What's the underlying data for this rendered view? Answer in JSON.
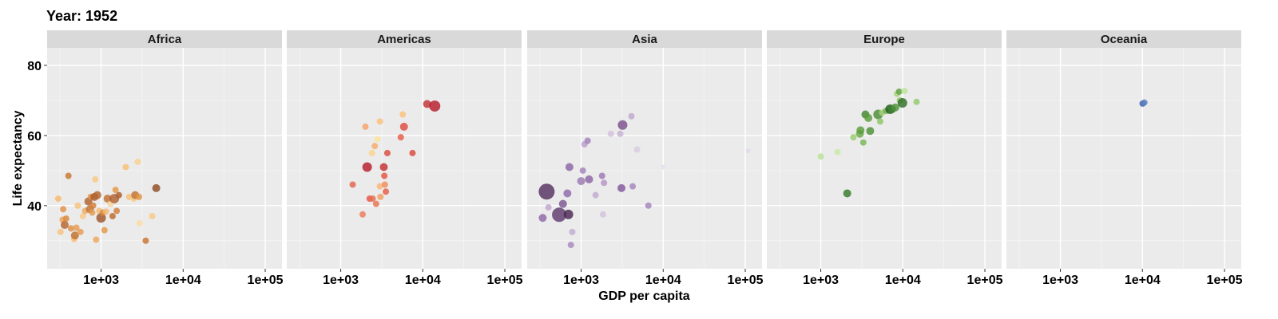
{
  "header": {
    "title": "Year: 1952"
  },
  "chart_data": {
    "type": "scatter",
    "title": "Year: 1952",
    "xlabel": "GDP per capita",
    "ylabel": "Life expectancy",
    "x_scale": "log10",
    "xlim": [
      220,
      160000
    ],
    "ylim": [
      22,
      85
    ],
    "xticks": [
      1000,
      10000,
      100000
    ],
    "xtick_labels": [
      "1e+03",
      "1e+04",
      "1e+05"
    ],
    "yticks": [
      40,
      60,
      80
    ],
    "ytick_labels": [
      "40",
      "60",
      "80"
    ],
    "grid": true,
    "size_encodes": "population",
    "panels": [
      {
        "name": "Africa",
        "points": [
          {
            "x": 300,
            "y": 42.0,
            "r": 4,
            "color": "#f8b86a"
          },
          {
            "x": 320,
            "y": 32.5,
            "r": 4,
            "color": "#f7c27e"
          },
          {
            "x": 340,
            "y": 36.0,
            "r": 4,
            "color": "#eaa057"
          },
          {
            "x": 345,
            "y": 39.0,
            "r": 4,
            "color": "#e09047"
          },
          {
            "x": 360,
            "y": 34.5,
            "r": 5,
            "color": "#b56530"
          },
          {
            "x": 375,
            "y": 36.3,
            "r": 4,
            "color": "#d8873d"
          },
          {
            "x": 400,
            "y": 48.5,
            "r": 4,
            "color": "#c8772f"
          },
          {
            "x": 430,
            "y": 33.5,
            "r": 4,
            "color": "#de8e45"
          },
          {
            "x": 470,
            "y": 30.5,
            "r": 4,
            "color": "#f5bd76"
          },
          {
            "x": 480,
            "y": 31.5,
            "r": 5,
            "color": "#c0702f"
          },
          {
            "x": 500,
            "y": 33.7,
            "r": 4,
            "color": "#e59a50"
          },
          {
            "x": 520,
            "y": 40.0,
            "r": 4,
            "color": "#f6c27a"
          },
          {
            "x": 560,
            "y": 32.5,
            "r": 4,
            "color": "#e69b4f"
          },
          {
            "x": 600,
            "y": 37.0,
            "r": 4,
            "color": "#f9c986"
          },
          {
            "x": 640,
            "y": 38.5,
            "r": 4,
            "color": "#ebaa60"
          },
          {
            "x": 700,
            "y": 41.2,
            "r": 5,
            "color": "#b0602c"
          },
          {
            "x": 730,
            "y": 39.0,
            "r": 5,
            "color": "#c4712f"
          },
          {
            "x": 750,
            "y": 42.5,
            "r": 4,
            "color": "#dd8c42"
          },
          {
            "x": 780,
            "y": 38.0,
            "r": 4,
            "color": "#e59b50"
          },
          {
            "x": 800,
            "y": 40.0,
            "r": 4,
            "color": "#cf7e36"
          },
          {
            "x": 830,
            "y": 42.5,
            "r": 5,
            "color": "#a85a2a"
          },
          {
            "x": 850,
            "y": 47.5,
            "r": 4,
            "color": "#f9c986"
          },
          {
            "x": 870,
            "y": 30.3,
            "r": 4,
            "color": "#eda65c"
          },
          {
            "x": 900,
            "y": 43.0,
            "r": 5,
            "color": "#b56530"
          },
          {
            "x": 950,
            "y": 38.5,
            "r": 4,
            "color": "#f4b973"
          },
          {
            "x": 1000,
            "y": 36.5,
            "r": 6,
            "color": "#9e5428"
          },
          {
            "x": 1050,
            "y": 38.0,
            "r": 4,
            "color": "#d98839"
          },
          {
            "x": 1100,
            "y": 33.0,
            "r": 4,
            "color": "#e49747"
          },
          {
            "x": 1150,
            "y": 38.3,
            "r": 4,
            "color": "#f4b973"
          },
          {
            "x": 1200,
            "y": 42.0,
            "r": 5,
            "color": "#c0702f"
          },
          {
            "x": 1300,
            "y": 40.5,
            "r": 4,
            "color": "#fad29a"
          },
          {
            "x": 1380,
            "y": 37.0,
            "r": 4,
            "color": "#ba6a2e"
          },
          {
            "x": 1450,
            "y": 42.0,
            "r": 6,
            "color": "#b06030"
          },
          {
            "x": 1500,
            "y": 44.5,
            "r": 4,
            "color": "#e49747"
          },
          {
            "x": 1550,
            "y": 38.5,
            "r": 4,
            "color": "#d17f38"
          },
          {
            "x": 1650,
            "y": 43.0,
            "r": 4,
            "color": "#aa5c2a"
          },
          {
            "x": 2000,
            "y": 51.0,
            "r": 4,
            "color": "#f6bf73"
          },
          {
            "x": 2200,
            "y": 42.5,
            "r": 4,
            "color": "#f5c178"
          },
          {
            "x": 2500,
            "y": 42.0,
            "r": 4,
            "color": "#f9c986"
          },
          {
            "x": 2600,
            "y": 43.0,
            "r": 5,
            "color": "#c27230"
          },
          {
            "x": 2800,
            "y": 52.5,
            "r": 4,
            "color": "#f9cf8f"
          },
          {
            "x": 2900,
            "y": 42.5,
            "r": 4,
            "color": "#e29545"
          },
          {
            "x": 2950,
            "y": 35.0,
            "r": 4,
            "color": "#fbd9a6"
          },
          {
            "x": 3500,
            "y": 30.0,
            "r": 4,
            "color": "#c8742f"
          },
          {
            "x": 4200,
            "y": 37.0,
            "r": 4,
            "color": "#f8c883"
          },
          {
            "x": 4700,
            "y": 45.0,
            "r": 5,
            "color": "#8e4a22"
          }
        ]
      },
      {
        "name": "Americas",
        "points": [
          {
            "x": 1400,
            "y": 46.0,
            "r": 4,
            "color": "#e4624c"
          },
          {
            "x": 1850,
            "y": 37.5,
            "r": 4,
            "color": "#ee7a5a"
          },
          {
            "x": 2000,
            "y": 62.5,
            "r": 4,
            "color": "#f5a26a"
          },
          {
            "x": 2100,
            "y": 51.0,
            "r": 6,
            "color": "#b71c2c"
          },
          {
            "x": 2250,
            "y": 42.0,
            "r": 4,
            "color": "#e3553f"
          },
          {
            "x": 2400,
            "y": 55.0,
            "r": 4,
            "color": "#fbd38c"
          },
          {
            "x": 2450,
            "y": 42.0,
            "r": 4,
            "color": "#e66b4e"
          },
          {
            "x": 2600,
            "y": 57.0,
            "r": 4,
            "color": "#f6a96d"
          },
          {
            "x": 2700,
            "y": 40.5,
            "r": 4,
            "color": "#e9714f"
          },
          {
            "x": 2800,
            "y": 59.0,
            "r": 4,
            "color": "#fde29a"
          },
          {
            "x": 3000,
            "y": 64.0,
            "r": 4,
            "color": "#fcc07a"
          },
          {
            "x": 3000,
            "y": 45.5,
            "r": 4,
            "color": "#f9b675"
          },
          {
            "x": 3050,
            "y": 42.5,
            "r": 4,
            "color": "#f29d62"
          },
          {
            "x": 3350,
            "y": 51.0,
            "r": 5,
            "color": "#c42e34"
          },
          {
            "x": 3400,
            "y": 48.5,
            "r": 4,
            "color": "#e35441"
          },
          {
            "x": 3450,
            "y": 46.0,
            "r": 4,
            "color": "#f08a5a"
          },
          {
            "x": 3550,
            "y": 44.0,
            "r": 4,
            "color": "#e75c45"
          },
          {
            "x": 3700,
            "y": 55.0,
            "r": 4,
            "color": "#db4b3d"
          },
          {
            "x": 5400,
            "y": 59.5,
            "r": 4,
            "color": "#e85a45"
          },
          {
            "x": 5700,
            "y": 66.0,
            "r": 4,
            "color": "#fbc17b"
          },
          {
            "x": 5900,
            "y": 62.5,
            "r": 5,
            "color": "#de4a3e"
          },
          {
            "x": 7500,
            "y": 55.0,
            "r": 4,
            "color": "#d9483a"
          },
          {
            "x": 11300,
            "y": 69.0,
            "r": 5,
            "color": "#c33234"
          },
          {
            "x": 13990,
            "y": 68.4,
            "r": 7,
            "color": "#b71c2c"
          }
        ]
      },
      {
        "name": "Asia",
        "points": [
          {
            "x": 340,
            "y": 36.5,
            "r": 5,
            "color": "#8e68a8"
          },
          {
            "x": 380,
            "y": 44.0,
            "r": 10,
            "color": "#56305e"
          },
          {
            "x": 400,
            "y": 39.5,
            "r": 4,
            "color": "#bfa7cc"
          },
          {
            "x": 540,
            "y": 37.4,
            "r": 9,
            "color": "#5e3a6c"
          },
          {
            "x": 600,
            "y": 40.5,
            "r": 5,
            "color": "#7b5592"
          },
          {
            "x": 680,
            "y": 43.5,
            "r": 5,
            "color": "#8f6aa9"
          },
          {
            "x": 700,
            "y": 37.5,
            "r": 6,
            "color": "#4a2652"
          },
          {
            "x": 720,
            "y": 51.0,
            "r": 5,
            "color": "#8a64a4"
          },
          {
            "x": 750,
            "y": 28.8,
            "r": 4,
            "color": "#a888bd"
          },
          {
            "x": 780,
            "y": 32.5,
            "r": 4,
            "color": "#c2aad1"
          },
          {
            "x": 1000,
            "y": 47.0,
            "r": 5,
            "color": "#9a78b2"
          },
          {
            "x": 1050,
            "y": 50.0,
            "r": 4,
            "color": "#a383ba"
          },
          {
            "x": 1100,
            "y": 57.5,
            "r": 4,
            "color": "#b99dc9"
          },
          {
            "x": 1200,
            "y": 58.5,
            "r": 4,
            "color": "#a080b8"
          },
          {
            "x": 1250,
            "y": 47.5,
            "r": 5,
            "color": "#8a63a4"
          },
          {
            "x": 1500,
            "y": 43.0,
            "r": 4,
            "color": "#c1a8d0"
          },
          {
            "x": 1800,
            "y": 48.5,
            "r": 4,
            "color": "#9b78b2"
          },
          {
            "x": 1850,
            "y": 37.5,
            "r": 4,
            "color": "#d3c1dd"
          },
          {
            "x": 1900,
            "y": 46.5,
            "r": 4,
            "color": "#b494c6"
          },
          {
            "x": 2300,
            "y": 60.5,
            "r": 4,
            "color": "#d3c1dd"
          },
          {
            "x": 3000,
            "y": 60.5,
            "r": 4,
            "color": "#c6b0d4"
          },
          {
            "x": 3200,
            "y": 63.0,
            "r": 6,
            "color": "#7a4e8c"
          },
          {
            "x": 3100,
            "y": 45.0,
            "r": 5,
            "color": "#81579a"
          },
          {
            "x": 4100,
            "y": 65.5,
            "r": 4,
            "color": "#c0a7cf"
          },
          {
            "x": 4250,
            "y": 45.5,
            "r": 4,
            "color": "#a584bb"
          },
          {
            "x": 4800,
            "y": 56.0,
            "r": 4,
            "color": "#d9cbe2"
          },
          {
            "x": 6600,
            "y": 40.0,
            "r": 4,
            "color": "#a583bb"
          },
          {
            "x": 10000,
            "y": 51.0,
            "r": 3,
            "color": "#e7deed"
          },
          {
            "x": 108000,
            "y": 55.6,
            "r": 3,
            "color": "#e3d9ea"
          }
        ]
      },
      {
        "name": "Europe",
        "points": [
          {
            "x": 1000,
            "y": 54.0,
            "r": 4,
            "color": "#b9e196"
          },
          {
            "x": 1600,
            "y": 55.3,
            "r": 4,
            "color": "#c8e8a8"
          },
          {
            "x": 2100,
            "y": 43.5,
            "r": 5,
            "color": "#357a28"
          },
          {
            "x": 2500,
            "y": 59.5,
            "r": 4,
            "color": "#98cc6e"
          },
          {
            "x": 3000,
            "y": 60.5,
            "r": 5,
            "color": "#66a846"
          },
          {
            "x": 3050,
            "y": 61.5,
            "r": 5,
            "color": "#5a9e3c"
          },
          {
            "x": 3300,
            "y": 58.0,
            "r": 4,
            "color": "#78b656"
          },
          {
            "x": 3500,
            "y": 66.0,
            "r": 5,
            "color": "#3f8630"
          },
          {
            "x": 3800,
            "y": 65.0,
            "r": 5,
            "color": "#5c9e3d"
          },
          {
            "x": 4000,
            "y": 61.3,
            "r": 5,
            "color": "#4a9035"
          },
          {
            "x": 5000,
            "y": 66.0,
            "r": 6,
            "color": "#4b8b36"
          },
          {
            "x": 5300,
            "y": 64.0,
            "r": 4,
            "color": "#8cc464"
          },
          {
            "x": 5600,
            "y": 66.5,
            "r": 4,
            "color": "#a6d47d"
          },
          {
            "x": 6200,
            "y": 67.0,
            "r": 4,
            "color": "#71af52"
          },
          {
            "x": 7000,
            "y": 67.5,
            "r": 6,
            "color": "#1f5c18"
          },
          {
            "x": 7400,
            "y": 67.5,
            "r": 5,
            "color": "#3c8030"
          },
          {
            "x": 8100,
            "y": 68.0,
            "r": 5,
            "color": "#4d9238"
          },
          {
            "x": 8500,
            "y": 71.9,
            "r": 4,
            "color": "#a3d179"
          },
          {
            "x": 9000,
            "y": 72.5,
            "r": 4,
            "color": "#5fa243"
          },
          {
            "x": 9200,
            "y": 70.0,
            "r": 4,
            "color": "#8bc564"
          },
          {
            "x": 9900,
            "y": 69.3,
            "r": 6,
            "color": "#2f6e26"
          },
          {
            "x": 10500,
            "y": 72.7,
            "r": 4,
            "color": "#bde398"
          },
          {
            "x": 14700,
            "y": 69.6,
            "r": 4,
            "color": "#91c96a"
          }
        ]
      },
      {
        "name": "Oceania",
        "points": [
          {
            "x": 10040,
            "y": 69.1,
            "r": 4,
            "color": "#3a5fa8"
          },
          {
            "x": 10560,
            "y": 69.4,
            "r": 4,
            "color": "#5a7fc0"
          }
        ]
      }
    ]
  }
}
